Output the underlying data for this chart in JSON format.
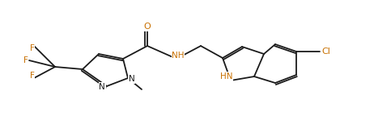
{
  "bg_color": "#ffffff",
  "line_color": "#1a1a1a",
  "atom_colors": {
    "O": "#c87000",
    "N": "#c87000",
    "F": "#c87000",
    "Cl": "#c87000"
  },
  "figsize": [
    4.62,
    1.54
  ],
  "dpi": 100,
  "lw": 1.3,
  "fs": 7.5
}
